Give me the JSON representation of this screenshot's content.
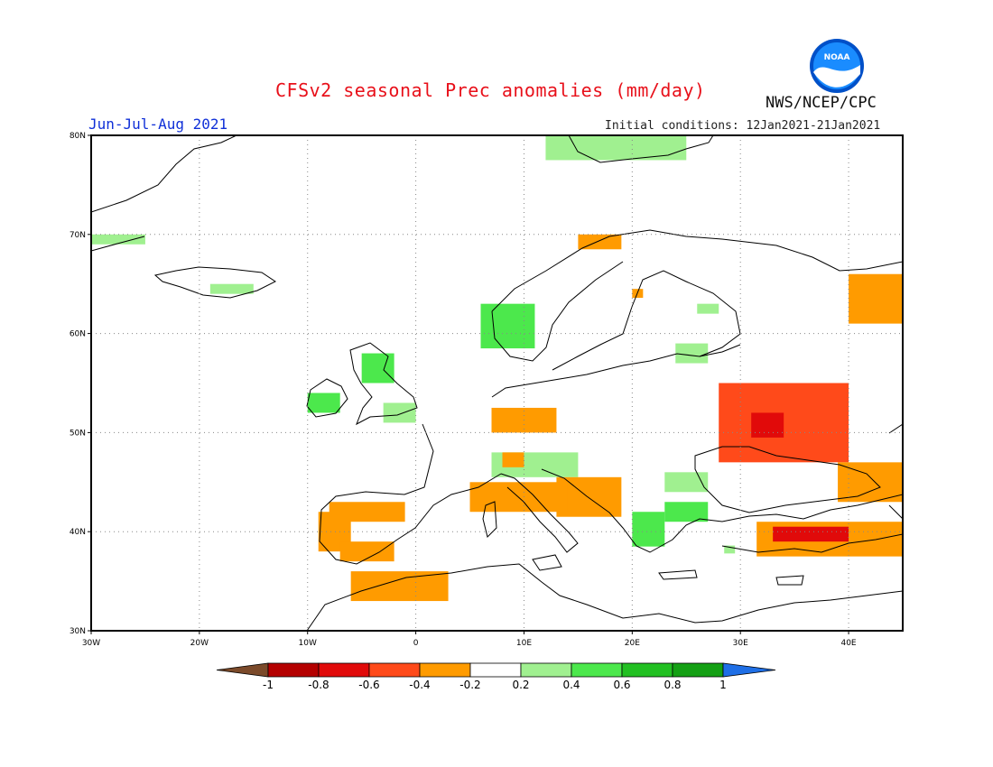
{
  "header": {
    "title": "CFSv2 seasonal Prec anomalies (mm/day)",
    "agency": "NWS/NCEP/CPC",
    "season": "Jun-Jul-Aug 2021",
    "initial_conditions": "Initial conditions: 12Jan2021-21Jan2021",
    "logo_text": "NOAA"
  },
  "map": {
    "lon_range": [
      -30,
      45
    ],
    "lat_range": [
      30,
      80
    ],
    "lon_ticks": [
      {
        "value": -30,
        "label": "30W"
      },
      {
        "value": -20,
        "label": "20W"
      },
      {
        "value": -10,
        "label": "10W"
      },
      {
        "value": 0,
        "label": "0"
      },
      {
        "value": 10,
        "label": "10E"
      },
      {
        "value": 20,
        "label": "20E"
      },
      {
        "value": 30,
        "label": "30E"
      },
      {
        "value": 40,
        "label": "40E"
      }
    ],
    "lat_ticks": [
      {
        "value": 30,
        "label": "30N"
      },
      {
        "value": 40,
        "label": "40N"
      },
      {
        "value": 50,
        "label": "50N"
      },
      {
        "value": 60,
        "label": "60N"
      },
      {
        "value": 70,
        "label": "70N"
      },
      {
        "value": 80,
        "label": "80N"
      }
    ],
    "grid": "dotted",
    "anomaly_regions": [
      {
        "name": "svalbard",
        "lon": [
          12,
          25
        ],
        "lat": [
          77.5,
          80
        ],
        "level": 0.3
      },
      {
        "name": "greenland-east",
        "lon": [
          -30,
          -25
        ],
        "lat": [
          69,
          70
        ],
        "level": 0.3
      },
      {
        "name": "iceland",
        "lon": [
          -19,
          -15
        ],
        "lat": [
          64,
          65
        ],
        "level": 0.3
      },
      {
        "name": "norway-west",
        "lon": [
          6,
          11
        ],
        "lat": [
          58.5,
          63
        ],
        "level": 0.5
      },
      {
        "name": "scotland",
        "lon": [
          -5,
          -2
        ],
        "lat": [
          55,
          58
        ],
        "level": 0.5
      },
      {
        "name": "ireland",
        "lon": [
          -10,
          -7
        ],
        "lat": [
          52,
          54
        ],
        "level": 0.4
      },
      {
        "name": "england",
        "lon": [
          -3,
          0
        ],
        "lat": [
          51,
          53
        ],
        "level": 0.3
      },
      {
        "name": "finland",
        "lon": [
          26,
          28
        ],
        "lat": [
          62,
          63
        ],
        "level": 0.3
      },
      {
        "name": "baltic",
        "lon": [
          24,
          27
        ],
        "lat": [
          57,
          59
        ],
        "level": 0.3
      },
      {
        "name": "alps",
        "lon": [
          7,
          15
        ],
        "lat": [
          45.5,
          48
        ],
        "level": 0.3
      },
      {
        "name": "romania",
        "lon": [
          23,
          27
        ],
        "lat": [
          44,
          46
        ],
        "level": 0.3
      },
      {
        "name": "bulgaria",
        "lon": [
          23,
          27
        ],
        "lat": [
          41,
          43
        ],
        "level": 0.5
      },
      {
        "name": "greece",
        "lon": [
          20,
          23
        ],
        "lat": [
          38.5,
          42
        ],
        "level": 0.4
      },
      {
        "name": "turkey-spot",
        "lon": [
          28.5,
          29.5
        ],
        "lat": [
          37.8,
          38.6
        ],
        "level": 0.3
      },
      {
        "name": "norway-north",
        "lon": [
          15,
          19
        ],
        "lat": [
          68.5,
          70
        ],
        "level": -0.3
      },
      {
        "name": "sweden-spot",
        "lon": [
          20,
          21
        ],
        "lat": [
          63.6,
          64.5
        ],
        "level": -0.3
      },
      {
        "name": "germany",
        "lon": [
          7,
          13
        ],
        "lat": [
          50,
          52.5
        ],
        "level": -0.3
      },
      {
        "name": "france-east",
        "lon": [
          8,
          10
        ],
        "lat": [
          46.5,
          48
        ],
        "level": -0.3
      },
      {
        "name": "balkans-west",
        "lon": [
          13,
          19
        ],
        "lat": [
          41.5,
          45.5
        ],
        "level": -0.3
      },
      {
        "name": "italy",
        "lon": [
          5,
          14
        ],
        "lat": [
          42,
          45
        ],
        "level": -0.3
      },
      {
        "name": "spain-north",
        "lon": [
          -8,
          -1
        ],
        "lat": [
          41,
          43
        ],
        "level": -0.3
      },
      {
        "name": "portugal",
        "lon": [
          -9,
          -6
        ],
        "lat": [
          38,
          42
        ],
        "level": -0.3
      },
      {
        "name": "spain-south",
        "lon": [
          -7,
          -2
        ],
        "lat": [
          37,
          39
        ],
        "level": -0.3
      },
      {
        "name": "morocco",
        "lon": [
          -6,
          3
        ],
        "lat": [
          33,
          36
        ],
        "level": -0.3
      },
      {
        "name": "ukraine-russia",
        "lon": [
          28,
          40
        ],
        "lat": [
          47,
          55
        ],
        "level": -0.4
      },
      {
        "name": "ukraine-core",
        "lon": [
          31,
          34
        ],
        "lat": [
          49.5,
          52
        ],
        "level": -0.6
      },
      {
        "name": "caucasus",
        "lon": [
          39,
          45
        ],
        "lat": [
          43,
          47
        ],
        "level": -0.3
      },
      {
        "name": "turkey",
        "lon": [
          31.5,
          45
        ],
        "lat": [
          37.5,
          41
        ],
        "level": -0.3
      },
      {
        "name": "turkey-core",
        "lon": [
          33,
          40
        ],
        "lat": [
          39,
          40.5
        ],
        "level": -0.6
      },
      {
        "name": "russia-ne",
        "lon": [
          40,
          45
        ],
        "lat": [
          61,
          66
        ],
        "level": -0.3
      }
    ]
  },
  "colorbar": {
    "ticks": [
      "-1",
      "-0.8",
      "-0.6",
      "-0.4",
      "-0.2",
      "0.2",
      "0.4",
      "0.6",
      "0.8",
      "1"
    ],
    "colors": [
      "#7b4a2a",
      "#b40000",
      "#e10a0a",
      "#ff4a1a",
      "#ff9b00",
      "#ffffff",
      "#a0f090",
      "#4ce84c",
      "#22c022",
      "#14a014",
      "#1f6fe6"
    ]
  }
}
